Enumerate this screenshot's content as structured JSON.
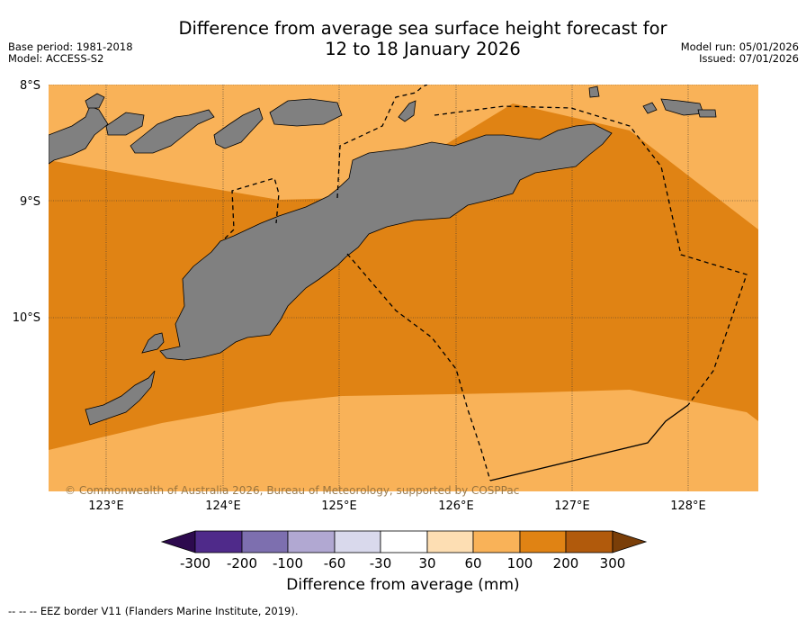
{
  "title": {
    "line1": "Difference from average sea surface height forecast for",
    "line2": "12 to 18 January 2026"
  },
  "meta_left": {
    "base_period": "Base period: 1981-2018",
    "model": "Model: ACCESS-S2"
  },
  "meta_right": {
    "model_run": "Model run: 05/01/2026",
    "issued": "Issued: 07/01/2026"
  },
  "map": {
    "lat_labels": [
      "8°S",
      "9°S",
      "10°S"
    ],
    "lon_labels": [
      "123°E",
      "124°E",
      "125°E",
      "126°E",
      "127°E",
      "128°E"
    ],
    "copyright": "© Commonwealth of Australia 2026, Bureau of Meteorology, supported by COSPPac",
    "colors": {
      "land": "#808080",
      "band_100_200": "#e08314",
      "band_60_100": "#f9b258"
    }
  },
  "colorbar": {
    "title": "Difference from average (mm)",
    "ticks": [
      "-300",
      "-200",
      "-100",
      "-60",
      "-30",
      "30",
      "60",
      "100",
      "200",
      "300"
    ],
    "colors": {
      "below_min": "#2d0a4e",
      "c1": "#4f2a8a",
      "c2": "#7d6faf",
      "c3": "#b1a8d2",
      "c4": "#d9d9ec",
      "c5": "#ffffff",
      "c6": "#fddeb3",
      "c7": "#f9b258",
      "c8": "#e08314",
      "c9": "#b15a0c",
      "above_max": "#7a3e08"
    }
  },
  "footnote": "--  --  -- EEZ border V11 (Flanders Marine Institute, 2019)."
}
